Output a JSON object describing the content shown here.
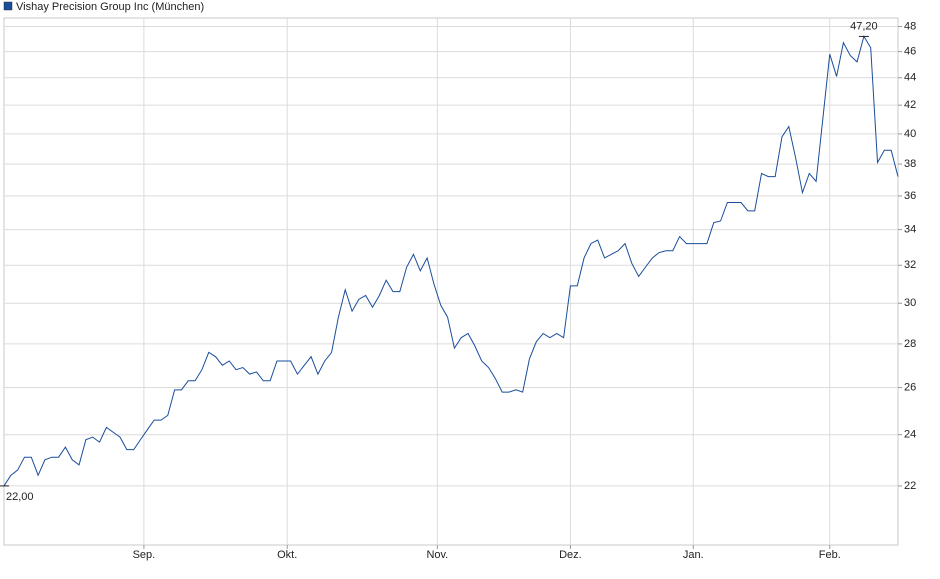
{
  "chart_data": {
    "type": "line",
    "series": [
      {
        "name": "Vishay Precision Group Inc (München)",
        "color": "#1a4d9c",
        "values": [
          22.0,
          22.4,
          22.6,
          23.1,
          23.1,
          22.4,
          23.0,
          23.1,
          23.1,
          23.5,
          23.0,
          22.8,
          23.8,
          23.9,
          23.7,
          24.3,
          24.1,
          23.9,
          23.4,
          23.4,
          23.8,
          24.2,
          24.6,
          24.6,
          24.8,
          25.9,
          25.9,
          26.3,
          26.3,
          26.8,
          27.6,
          27.4,
          27.0,
          27.2,
          26.8,
          26.9,
          26.6,
          26.7,
          26.3,
          26.3,
          27.2,
          27.2,
          27.2,
          26.6,
          27.0,
          27.4,
          26.6,
          27.2,
          27.6,
          29.3,
          30.7,
          29.6,
          30.2,
          30.4,
          29.8,
          30.4,
          31.2,
          30.6,
          30.6,
          31.9,
          32.6,
          31.7,
          32.4,
          31.0,
          29.9,
          29.3,
          27.8,
          28.3,
          28.5,
          27.9,
          27.2,
          26.9,
          26.4,
          25.8,
          25.8,
          25.9,
          25.8,
          27.3,
          28.1,
          28.5,
          28.3,
          28.5,
          28.3,
          30.9,
          30.9,
          32.4,
          33.2,
          33.4,
          32.4,
          32.6,
          32.8,
          33.2,
          32.1,
          31.4,
          31.9,
          32.4,
          32.7,
          32.8,
          32.8,
          33.6,
          33.2,
          33.2,
          33.2,
          33.2,
          34.4,
          34.5,
          35.6,
          35.6,
          35.6,
          35.1,
          35.1,
          37.4,
          37.2,
          37.2,
          39.8,
          40.5,
          38.4,
          36.2,
          37.4,
          36.9,
          41.1,
          45.8,
          44.1,
          46.7,
          45.7,
          45.2,
          47.2,
          46.3,
          38.1,
          38.9,
          38.9,
          37.2
        ],
        "value_labels": [
          "22,00",
          null,
          null,
          null,
          null,
          null,
          null,
          null,
          null,
          null,
          null,
          null,
          null,
          null,
          null,
          null,
          null,
          null,
          null,
          null,
          null,
          null,
          null,
          null,
          null,
          null,
          null,
          null,
          null,
          null,
          null,
          null,
          null,
          null,
          null,
          null,
          null,
          null,
          null,
          null,
          null,
          null,
          null,
          null,
          null,
          null,
          null,
          null,
          null,
          null,
          null,
          null,
          null,
          null,
          null,
          null,
          null,
          null,
          null,
          null,
          null,
          null,
          null,
          null,
          null,
          null,
          null,
          null,
          null,
          null,
          null,
          null,
          null,
          null,
          null,
          null,
          null,
          null,
          null,
          null,
          null,
          null,
          null,
          null,
          null,
          null,
          null,
          null,
          null,
          null,
          null,
          null,
          null,
          null,
          null,
          null,
          null,
          null,
          null,
          null,
          null,
          null,
          null,
          null,
          null,
          null,
          null,
          null,
          null,
          null,
          null,
          null,
          null,
          null,
          null,
          null,
          null,
          null,
          null,
          null,
          null,
          null,
          null,
          null,
          null,
          null,
          "47,20",
          null,
          null,
          null,
          null,
          null
        ]
      }
    ],
    "xlim": [
      0,
      131
    ],
    "xticks": [
      {
        "value": 20.5,
        "label": "Sep."
      },
      {
        "value": 41.5,
        "label": "Okt."
      },
      {
        "value": 63.5,
        "label": "Nov."
      },
      {
        "value": 83,
        "label": "Dez."
      },
      {
        "value": 101,
        "label": "Jan."
      },
      {
        "value": 121,
        "label": "Feb."
      }
    ],
    "ylim": [
      19.9,
      48.7
    ],
    "yticks": [
      22,
      24,
      26,
      28,
      30,
      32,
      34,
      36,
      38,
      40,
      42,
      44,
      46,
      48
    ],
    "log_scale": true,
    "grid": true,
    "legend": "top-left"
  }
}
